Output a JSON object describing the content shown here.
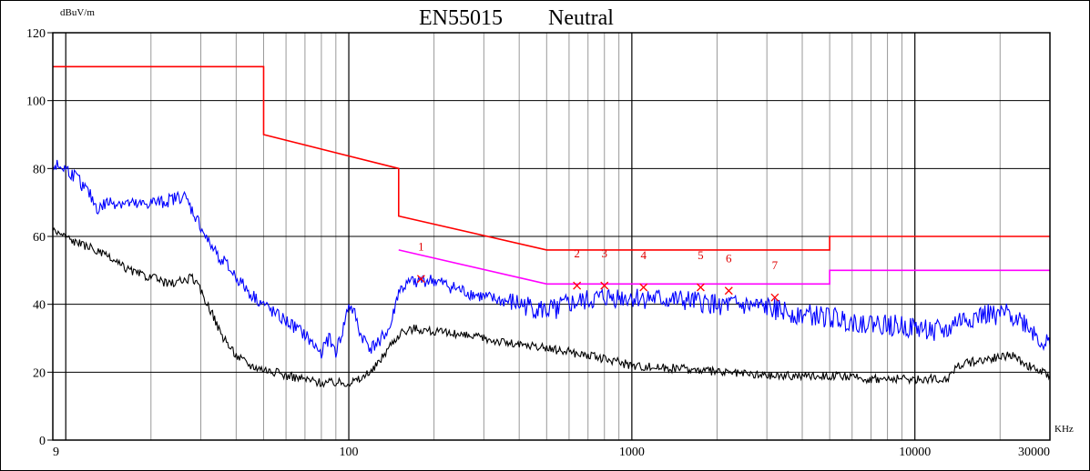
{
  "chart_data": {
    "type": "line",
    "title": "EN55015",
    "subtitle": "Neutral",
    "ylabel": "dBuV/m",
    "xlabel": "KHz",
    "xscale": "log",
    "xlim": [
      9,
      30000
    ],
    "ylim": [
      0,
      120
    ],
    "grid": true,
    "x_ticks": [
      {
        "value": 9,
        "label": "9"
      },
      {
        "value": 100,
        "label": "100"
      },
      {
        "value": 1000,
        "label": "1000"
      },
      {
        "value": 10000,
        "label": "10000"
      },
      {
        "value": 30000,
        "label": "30000"
      }
    ],
    "y_ticks": [
      {
        "value": 0,
        "label": "0"
      },
      {
        "value": 20,
        "label": "20"
      },
      {
        "value": 40,
        "label": "40"
      },
      {
        "value": 60,
        "label": "60"
      },
      {
        "value": 80,
        "label": "80"
      },
      {
        "value": 100,
        "label": "100"
      },
      {
        "value": 120,
        "label": "120"
      }
    ],
    "colors": {
      "quasi_peak_limit": "#ff0000",
      "average_limit": "#ff00ff",
      "peak_trace": "#0000ff",
      "average_trace": "#000000",
      "markers": "#ff0000",
      "grid": "#000000",
      "minor_grid": "#999999"
    },
    "series": [
      {
        "style": "limit",
        "points": [
          [
            9,
            110
          ],
          [
            50,
            110
          ],
          [
            50,
            90
          ],
          [
            150,
            80
          ],
          [
            150,
            66
          ],
          [
            500,
            56
          ],
          [
            5000,
            56
          ],
          [
            5000,
            60
          ],
          [
            30000,
            60
          ]
        ]
      },
      {
        "style": "limit",
        "points": [
          [
            150,
            56
          ],
          [
            500,
            46
          ],
          [
            5000,
            46
          ],
          [
            5000,
            50
          ],
          [
            30000,
            50
          ]
        ]
      },
      {
        "style": "measured",
        "points": [
          [
            9,
            81
          ],
          [
            10,
            80
          ],
          [
            11,
            77
          ],
          [
            12,
            73
          ],
          [
            13,
            68
          ],
          [
            14,
            70
          ],
          [
            16,
            70
          ],
          [
            18,
            69
          ],
          [
            20,
            70
          ],
          [
            22,
            70
          ],
          [
            24,
            71
          ],
          [
            26,
            72
          ],
          [
            27,
            70
          ],
          [
            30,
            63
          ],
          [
            32,
            58
          ],
          [
            35,
            54
          ],
          [
            40,
            48
          ],
          [
            45,
            43
          ],
          [
            50,
            40
          ],
          [
            55,
            37
          ],
          [
            60,
            35
          ],
          [
            65,
            33
          ],
          [
            70,
            31
          ],
          [
            75,
            28
          ],
          [
            80,
            26
          ],
          [
            85,
            30
          ],
          [
            90,
            26
          ],
          [
            95,
            32
          ],
          [
            100,
            40
          ],
          [
            105,
            37
          ],
          [
            110,
            31
          ],
          [
            115,
            29
          ],
          [
            120,
            27
          ],
          [
            130,
            30
          ],
          [
            140,
            33
          ],
          [
            150,
            44
          ],
          [
            170,
            47
          ],
          [
            200,
            47
          ],
          [
            250,
            44
          ],
          [
            300,
            42
          ],
          [
            400,
            40
          ],
          [
            500,
            38
          ],
          [
            600,
            40
          ],
          [
            700,
            41
          ],
          [
            800,
            42
          ],
          [
            1000,
            42
          ],
          [
            1500,
            41
          ],
          [
            2000,
            40
          ],
          [
            3000,
            39
          ],
          [
            4000,
            37
          ],
          [
            5000,
            36
          ],
          [
            6000,
            35
          ],
          [
            8000,
            34
          ],
          [
            10000,
            33
          ],
          [
            13000,
            32
          ],
          [
            14000,
            35
          ],
          [
            18000,
            37
          ],
          [
            22000,
            37
          ],
          [
            25000,
            34
          ],
          [
            28000,
            29
          ],
          [
            30000,
            28
          ]
        ]
      },
      {
        "style": "measured",
        "points": [
          [
            9,
            62
          ],
          [
            10,
            60
          ],
          [
            11,
            58
          ],
          [
            12,
            57
          ],
          [
            14,
            54
          ],
          [
            16,
            51
          ],
          [
            18,
            49
          ],
          [
            20,
            48
          ],
          [
            23,
            46
          ],
          [
            26,
            47
          ],
          [
            28,
            48
          ],
          [
            30,
            44
          ],
          [
            33,
            37
          ],
          [
            36,
            30
          ],
          [
            40,
            25
          ],
          [
            45,
            22
          ],
          [
            50,
            21
          ],
          [
            55,
            20
          ],
          [
            60,
            19
          ],
          [
            70,
            18
          ],
          [
            80,
            17
          ],
          [
            90,
            17
          ],
          [
            100,
            17
          ],
          [
            110,
            18
          ],
          [
            120,
            20
          ],
          [
            130,
            24
          ],
          [
            140,
            28
          ],
          [
            150,
            31
          ],
          [
            170,
            33
          ],
          [
            200,
            32
          ],
          [
            300,
            30
          ],
          [
            400,
            28
          ],
          [
            500,
            27
          ],
          [
            700,
            25
          ],
          [
            1000,
            22
          ],
          [
            1500,
            21
          ],
          [
            2000,
            20
          ],
          [
            3000,
            19
          ],
          [
            5000,
            19
          ],
          [
            7000,
            18
          ],
          [
            10000,
            18
          ],
          [
            13000,
            18
          ],
          [
            14000,
            22
          ],
          [
            18000,
            24
          ],
          [
            22000,
            25
          ],
          [
            25000,
            22
          ],
          [
            28000,
            20
          ],
          [
            30000,
            19
          ]
        ]
      }
    ],
    "markers": [
      {
        "label": "1",
        "x": 180,
        "y": 47.5
      },
      {
        "label": "2",
        "x": 640,
        "y": 45.5
      },
      {
        "label": "3",
        "x": 800,
        "y": 45.5
      },
      {
        "label": "4",
        "x": 1100,
        "y": 45
      },
      {
        "label": "5",
        "x": 1750,
        "y": 45
      },
      {
        "label": "6",
        "x": 2200,
        "y": 44
      },
      {
        "label": "7",
        "x": 3200,
        "y": 42
      }
    ]
  }
}
